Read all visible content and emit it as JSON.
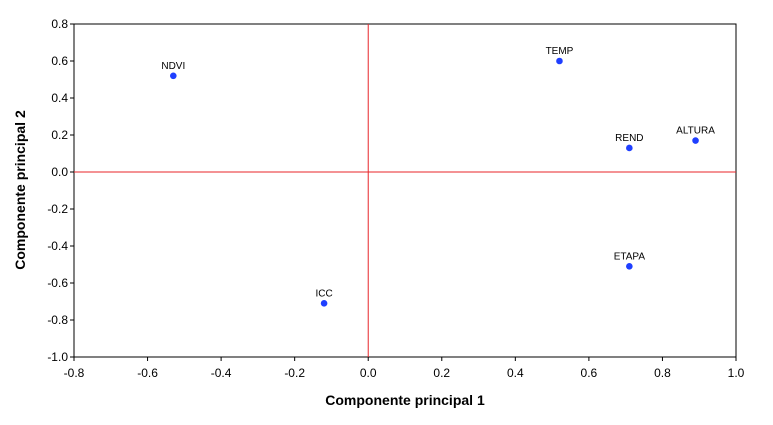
{
  "chart_data": {
    "type": "scatter",
    "title": "",
    "xlabel": "Componente principal 1",
    "ylabel": "Componente principal 2",
    "xlim": [
      -0.8,
      1.0
    ],
    "ylim": [
      -1.0,
      0.8
    ],
    "xticks": [
      "-0.8",
      "-0.6",
      "-0.4",
      "-0.2",
      "0.0",
      "0.2",
      "0.4",
      "0.6",
      "0.8",
      "1.0"
    ],
    "yticks": [
      "0.8",
      "0.6",
      "0.4",
      "0.2",
      "0.0",
      "-0.2",
      "-0.4",
      "-0.6",
      "-0.8",
      "-1.0"
    ],
    "reference_lines": {
      "x": 0.0,
      "y": 0.0,
      "color": "#e8262a"
    },
    "grid": false,
    "point_color": "#1f3fff",
    "points": [
      {
        "label": "NDVI",
        "x": -0.53,
        "y": 0.52
      },
      {
        "label": "TEMP",
        "x": 0.52,
        "y": 0.6
      },
      {
        "label": "REND",
        "x": 0.71,
        "y": 0.13
      },
      {
        "label": "ALTURA",
        "x": 0.89,
        "y": 0.17
      },
      {
        "label": "ETAPA",
        "x": 0.71,
        "y": -0.51
      },
      {
        "label": "ICC",
        "x": -0.12,
        "y": -0.71
      }
    ]
  }
}
